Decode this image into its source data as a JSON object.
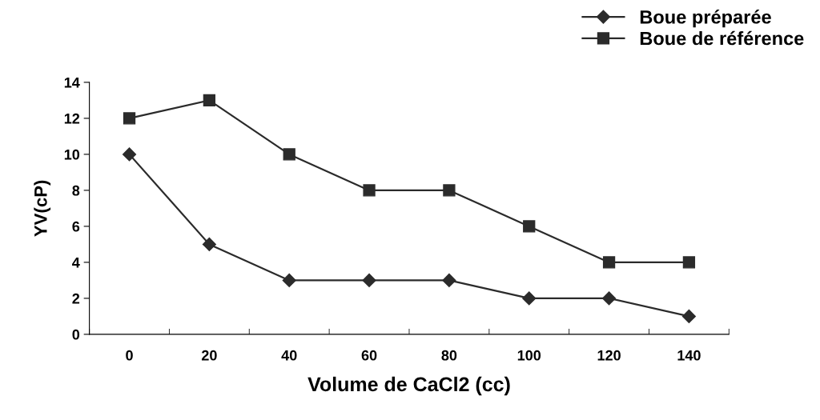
{
  "chart_data": {
    "type": "line",
    "xlabel": "Volume de CaCl2 (cc)",
    "ylabel": "YV(cP)",
    "categories": [
      "0",
      "20",
      "40",
      "60",
      "80",
      "100",
      "120",
      "140"
    ],
    "series": [
      {
        "name": "Boue préparée",
        "color": "#2b2b2b",
        "marker": "diamond",
        "values": [
          10,
          5,
          3,
          3,
          3,
          2,
          2,
          1
        ]
      },
      {
        "name": "Boue de référence",
        "color": "#2b2b2b",
        "marker": "square",
        "values": [
          12,
          13,
          10,
          8,
          8,
          6,
          4,
          4
        ]
      }
    ],
    "ylim": [
      0,
      14
    ],
    "yticks": [
      0,
      2,
      4,
      6,
      8,
      10,
      12,
      14
    ],
    "grid": false,
    "legend": "top right",
    "line_style": "solid"
  }
}
